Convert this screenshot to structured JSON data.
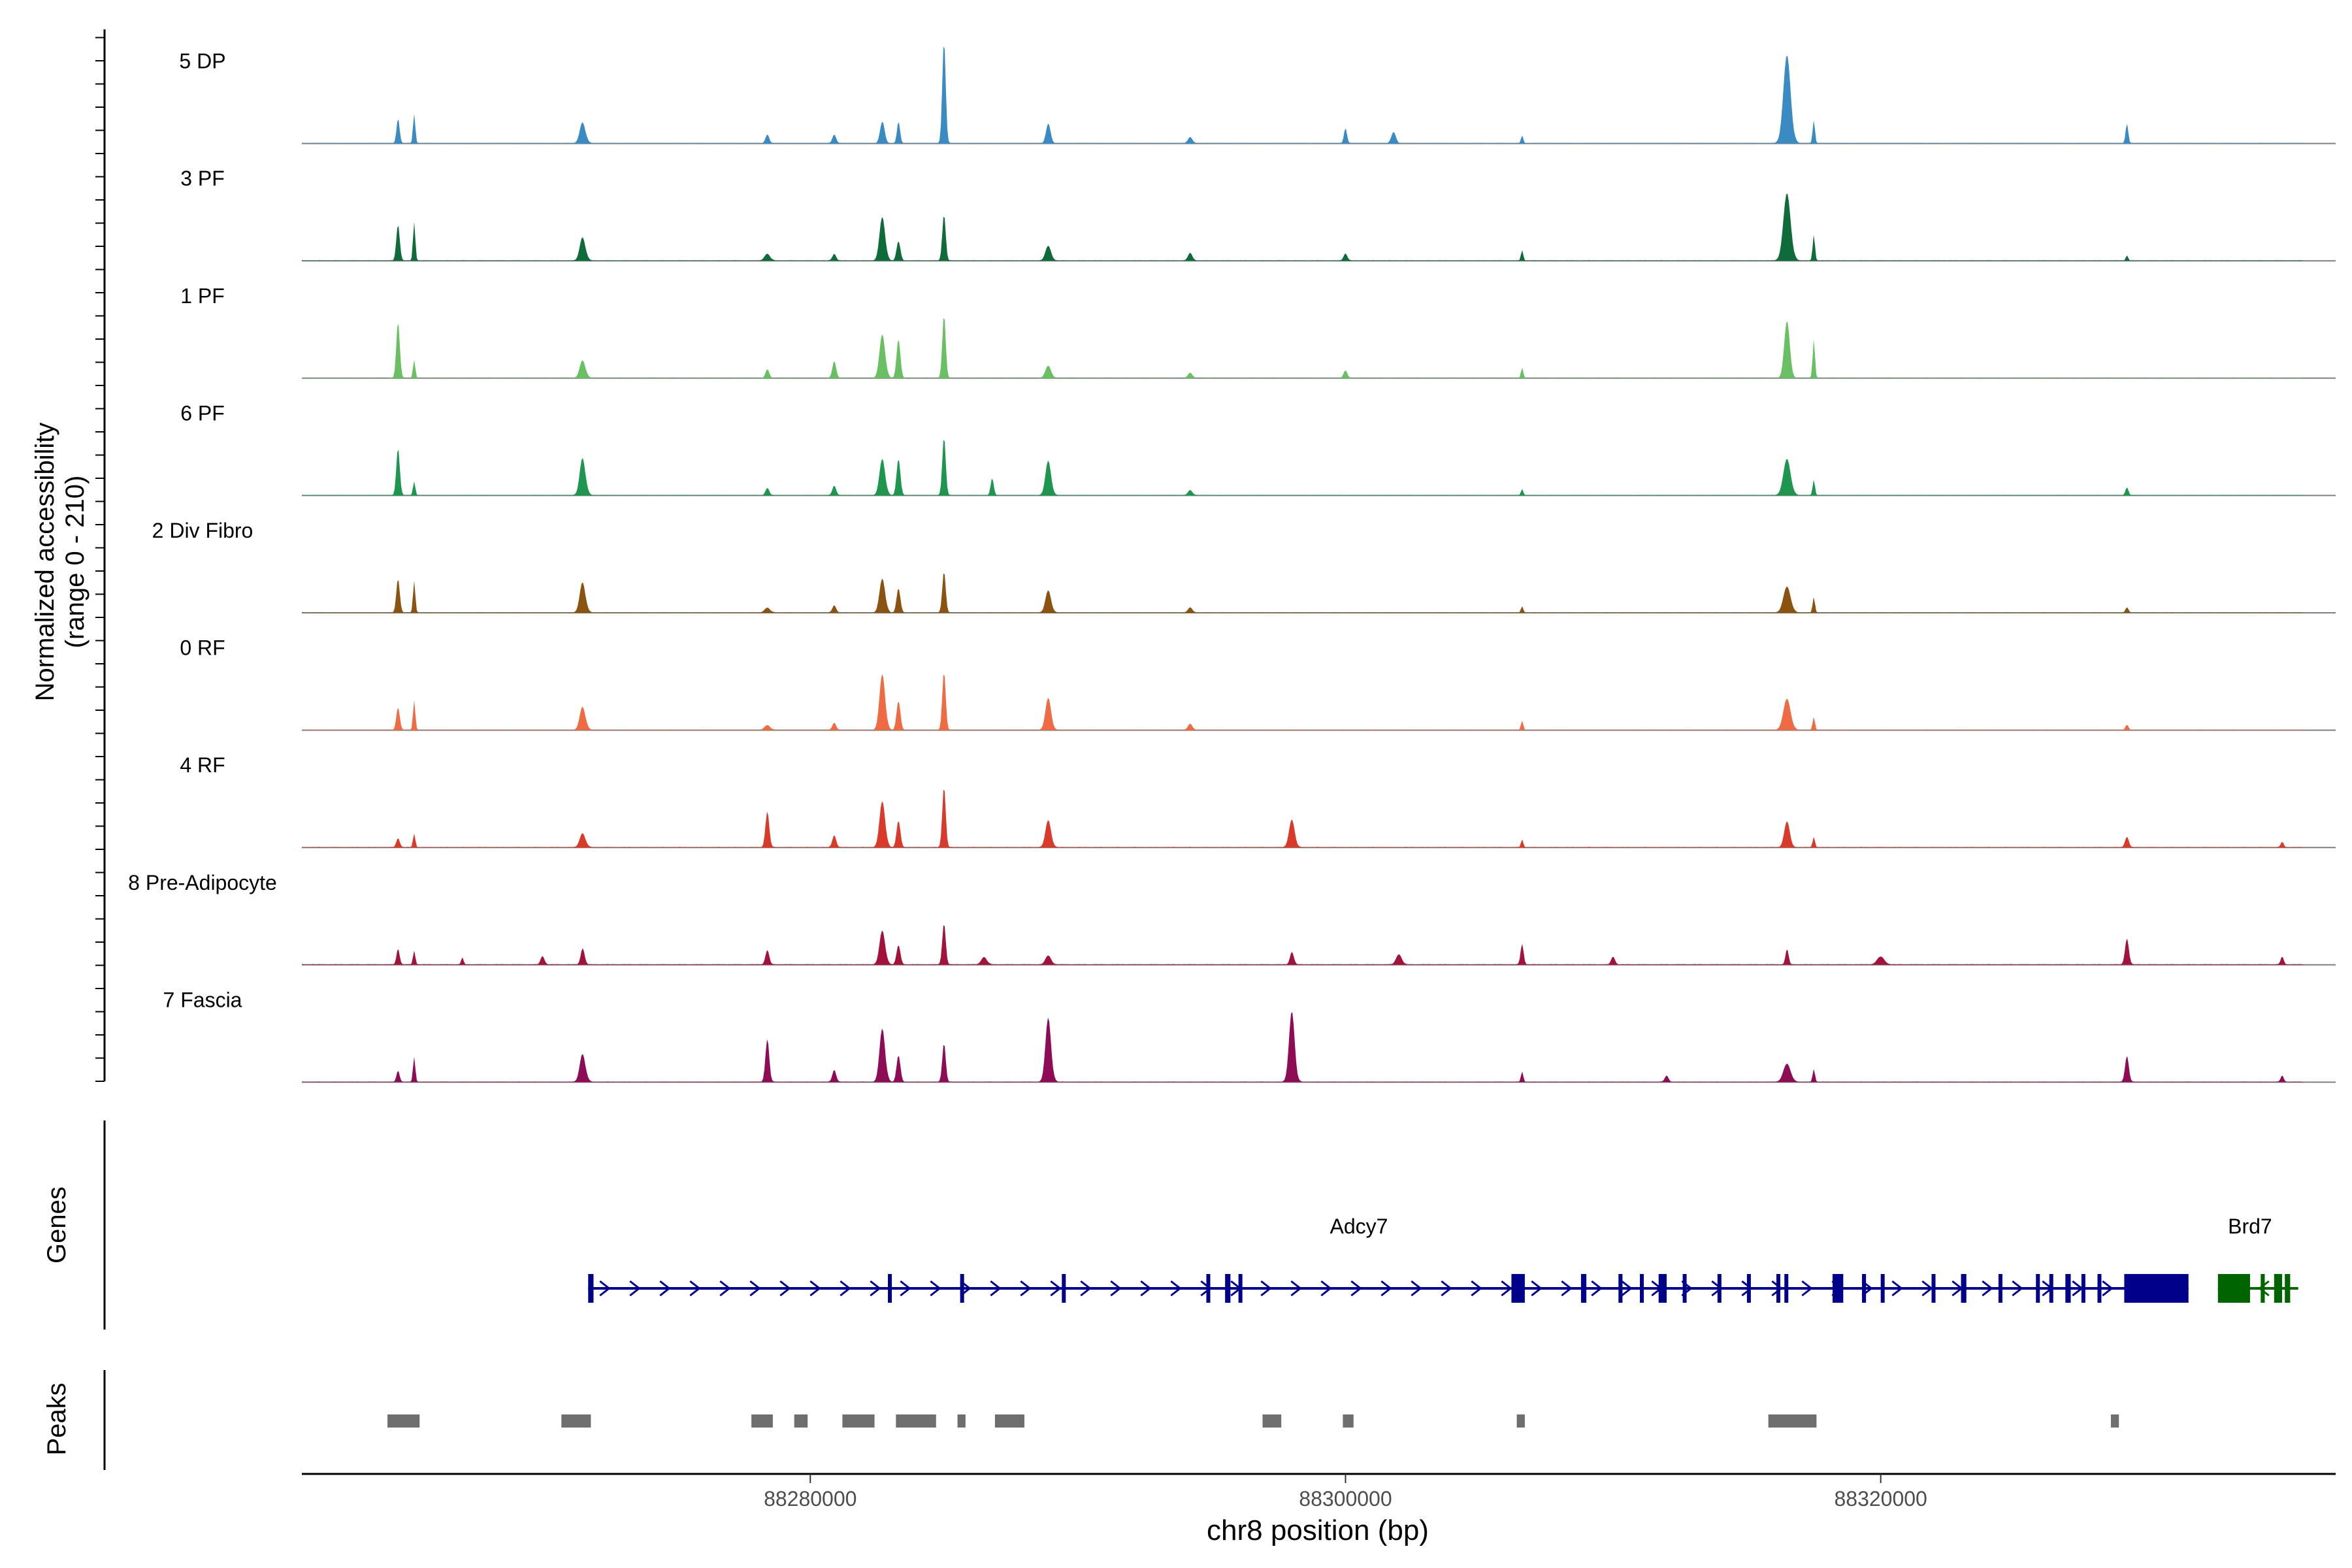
{
  "chart_data": {
    "type": "area",
    "title": "",
    "region": "chr8",
    "xlim": [
      88261000,
      88337000
    ],
    "xlabel": "chr8 position (bp)",
    "x_ticks": [
      88280000,
      88300000,
      88320000
    ],
    "x_tick_labels": [
      "88280000",
      "88300000",
      "88320000"
    ],
    "ylabel": "Normalized accessibility",
    "ylabel_range": "(range 0 - 210)",
    "ylim": [
      0,
      210
    ],
    "track_labels": {
      "genes": "Genes",
      "peaks": "Peaks"
    },
    "series": [
      {
        "name": "5 DP",
        "color": "#3A8AC4",
        "baseline": 0.4,
        "peaks": [
          [
            88264600,
            55,
            80
          ],
          [
            88265200,
            65,
            60
          ],
          [
            88271500,
            45,
            150
          ],
          [
            88278400,
            18,
            100
          ],
          [
            88280900,
            18,
            100
          ],
          [
            88282700,
            45,
            120
          ],
          [
            88283300,
            45,
            80
          ],
          [
            88285000,
            210,
            90
          ],
          [
            88288900,
            40,
            120
          ],
          [
            88294200,
            12,
            120
          ],
          [
            88300000,
            30,
            80
          ],
          [
            88301800,
            22,
            120
          ],
          [
            88306600,
            15,
            60
          ],
          [
            88316500,
            170,
            200
          ],
          [
            88317500,
            45,
            60
          ],
          [
            88329200,
            38,
            70
          ]
        ]
      },
      {
        "name": "3 PF",
        "color": "#0F6B3A",
        "baseline": 0.4,
        "peaks": [
          [
            88264600,
            80,
            90
          ],
          [
            88265200,
            85,
            60
          ],
          [
            88271500,
            50,
            150
          ],
          [
            88278400,
            14,
            150
          ],
          [
            88280900,
            14,
            100
          ],
          [
            88282700,
            90,
            150
          ],
          [
            88283300,
            40,
            100
          ],
          [
            88285000,
            95,
            90
          ],
          [
            88288900,
            30,
            150
          ],
          [
            88294200,
            15,
            120
          ],
          [
            88300000,
            14,
            100
          ],
          [
            88306600,
            20,
            60
          ],
          [
            88316500,
            130,
            200
          ],
          [
            88317500,
            50,
            60
          ],
          [
            88329200,
            10,
            60
          ]
        ]
      },
      {
        "name": "1 PF",
        "color": "#69C062",
        "baseline": 0.3,
        "peaks": [
          [
            88264600,
            125,
            90
          ],
          [
            88265200,
            40,
            60
          ],
          [
            88271500,
            38,
            150
          ],
          [
            88278400,
            18,
            100
          ],
          [
            88280900,
            35,
            100
          ],
          [
            88282700,
            90,
            150
          ],
          [
            88283300,
            80,
            100
          ],
          [
            88285000,
            130,
            90
          ],
          [
            88288900,
            25,
            150
          ],
          [
            88294200,
            10,
            120
          ],
          [
            88300000,
            15,
            100
          ],
          [
            88306600,
            20,
            60
          ],
          [
            88316500,
            110,
            150
          ],
          [
            88317500,
            75,
            60
          ]
        ]
      },
      {
        "name": "6 PF",
        "color": "#1E9650",
        "baseline": 0.5,
        "peaks": [
          [
            88264600,
            105,
            90
          ],
          [
            88265200,
            30,
            60
          ],
          [
            88271500,
            80,
            150
          ],
          [
            88278400,
            15,
            100
          ],
          [
            88280900,
            20,
            100
          ],
          [
            88282700,
            75,
            150
          ],
          [
            88283300,
            75,
            100
          ],
          [
            88285000,
            120,
            90
          ],
          [
            88286800,
            35,
            80
          ],
          [
            88288900,
            70,
            150
          ],
          [
            88294200,
            10,
            120
          ],
          [
            88306600,
            12,
            60
          ],
          [
            88316500,
            70,
            200
          ],
          [
            88317500,
            30,
            60
          ],
          [
            88329200,
            15,
            80
          ]
        ]
      },
      {
        "name": "2 Div Fibro",
        "color": "#8B5310",
        "baseline": 0.5,
        "peaks": [
          [
            88264600,
            75,
            90
          ],
          [
            88265200,
            70,
            60
          ],
          [
            88271500,
            65,
            150
          ],
          [
            88278400,
            10,
            150
          ],
          [
            88280900,
            15,
            100
          ],
          [
            88282700,
            70,
            150
          ],
          [
            88283300,
            50,
            100
          ],
          [
            88285000,
            85,
            90
          ],
          [
            88288900,
            45,
            150
          ],
          [
            88294200,
            10,
            120
          ],
          [
            88306600,
            12,
            60
          ],
          [
            88316500,
            50,
            200
          ],
          [
            88317500,
            30,
            60
          ],
          [
            88329200,
            10,
            80
          ]
        ]
      },
      {
        "name": "0 RF",
        "color": "#EF6B43",
        "baseline": 0.4,
        "peaks": [
          [
            88264600,
            50,
            90
          ],
          [
            88265200,
            65,
            60
          ],
          [
            88271500,
            50,
            150
          ],
          [
            88278400,
            10,
            150
          ],
          [
            88280900,
            15,
            100
          ],
          [
            88282700,
            115,
            150
          ],
          [
            88283300,
            60,
            100
          ],
          [
            88285000,
            120,
            90
          ],
          [
            88288900,
            65,
            150
          ],
          [
            88294200,
            12,
            120
          ],
          [
            88306600,
            18,
            60
          ],
          [
            88316500,
            60,
            200
          ],
          [
            88317500,
            25,
            60
          ],
          [
            88329200,
            10,
            80
          ]
        ]
      },
      {
        "name": "4 RF",
        "color": "#D93A2A",
        "baseline": 0.5,
        "peaks": [
          [
            88264600,
            20,
            90
          ],
          [
            88265200,
            30,
            60
          ],
          [
            88271500,
            30,
            150
          ],
          [
            88278400,
            75,
            100
          ],
          [
            88280900,
            25,
            100
          ],
          [
            88282700,
            95,
            150
          ],
          [
            88283300,
            55,
            100
          ],
          [
            88285000,
            125,
            90
          ],
          [
            88288900,
            55,
            150
          ],
          [
            88298000,
            55,
            150
          ],
          [
            88306600,
            15,
            60
          ],
          [
            88316500,
            50,
            150
          ],
          [
            88317500,
            20,
            60
          ],
          [
            88329200,
            20,
            100
          ],
          [
            88335000,
            10,
            80
          ]
        ]
      },
      {
        "name": "8 Pre-Adipocyte",
        "color": "#A3123A",
        "baseline": 0.8,
        "peaks": [
          [
            88264600,
            35,
            80
          ],
          [
            88265200,
            30,
            60
          ],
          [
            88267000,
            15,
            60
          ],
          [
            88270000,
            18,
            100
          ],
          [
            88271500,
            35,
            100
          ],
          [
            88278400,
            30,
            100
          ],
          [
            88282700,
            70,
            150
          ],
          [
            88283300,
            40,
            100
          ],
          [
            88285000,
            85,
            90
          ],
          [
            88286500,
            15,
            150
          ],
          [
            88288900,
            18,
            150
          ],
          [
            88298000,
            25,
            100
          ],
          [
            88302000,
            20,
            150
          ],
          [
            88306600,
            40,
            80
          ],
          [
            88310000,
            15,
            100
          ],
          [
            88316500,
            30,
            80
          ],
          [
            88320000,
            15,
            200
          ],
          [
            88329200,
            50,
            100
          ],
          [
            88335000,
            15,
            80
          ]
        ]
      },
      {
        "name": "7 Fascia",
        "color": "#8E0B56",
        "baseline": 0.6,
        "peaks": [
          [
            88264600,
            25,
            80
          ],
          [
            88265200,
            55,
            60
          ],
          [
            88271500,
            60,
            150
          ],
          [
            88278400,
            90,
            100
          ],
          [
            88280900,
            25,
            100
          ],
          [
            88282700,
            110,
            150
          ],
          [
            88283300,
            55,
            100
          ],
          [
            88285000,
            80,
            90
          ],
          [
            88288900,
            130,
            150
          ],
          [
            88298000,
            140,
            150
          ],
          [
            88306600,
            20,
            60
          ],
          [
            88312000,
            12,
            100
          ],
          [
            88316500,
            35,
            200
          ],
          [
            88317500,
            25,
            60
          ],
          [
            88329200,
            50,
            100
          ],
          [
            88335000,
            12,
            80
          ]
        ]
      }
    ],
    "genes": [
      {
        "name": "Adcy7",
        "color": "#00008B",
        "start": 88271700,
        "end": 88331500,
        "strand": "+",
        "exons": [
          [
            88271700,
            88271900
          ],
          [
            88282900,
            88282950
          ],
          [
            88285600,
            88285650
          ],
          [
            88289400,
            88289500
          ],
          [
            88294800,
            88294900
          ],
          [
            88295500,
            88295700
          ],
          [
            88296000,
            88296100
          ],
          [
            88306200,
            88306700
          ],
          [
            88308800,
            88309000
          ],
          [
            88310200,
            88310350
          ],
          [
            88311000,
            88311100
          ],
          [
            88311700,
            88312000
          ],
          [
            88312600,
            88312700
          ],
          [
            88313900,
            88314000
          ],
          [
            88315000,
            88315100
          ],
          [
            88316100,
            88316200
          ],
          [
            88316400,
            88316500
          ],
          [
            88318200,
            88318600
          ],
          [
            88319300,
            88319450
          ],
          [
            88320000,
            88320100
          ],
          [
            88321900,
            88322000
          ],
          [
            88323000,
            88323200
          ],
          [
            88324400,
            88324500
          ],
          [
            88325800,
            88325900
          ],
          [
            88326300,
            88326400
          ],
          [
            88326900,
            88327100
          ],
          [
            88327500,
            88327600
          ],
          [
            88328100,
            88328200
          ],
          [
            88329100,
            88331500
          ]
        ]
      },
      {
        "name": "Brd7",
        "color": "#006400",
        "start": 88332600,
        "end": 88335600,
        "strand": "-",
        "exons": [
          [
            88332600,
            88333800
          ],
          [
            88334200,
            88334350
          ],
          [
            88334700,
            88335000
          ],
          [
            88335100,
            88335300
          ]
        ]
      }
    ],
    "peaks_track": [
      [
        88264200,
        88265400
      ],
      [
        88270700,
        88271800
      ],
      [
        88277800,
        88278600
      ],
      [
        88279400,
        88279900
      ],
      [
        88281200,
        88282400
      ],
      [
        88283200,
        88284700
      ],
      [
        88285500,
        88285800
      ],
      [
        88286900,
        88288000
      ],
      [
        88296900,
        88297600
      ],
      [
        88299900,
        88300300
      ],
      [
        88306400,
        88306700
      ],
      [
        88315800,
        88317600
      ],
      [
        88328600,
        88328900
      ]
    ]
  }
}
